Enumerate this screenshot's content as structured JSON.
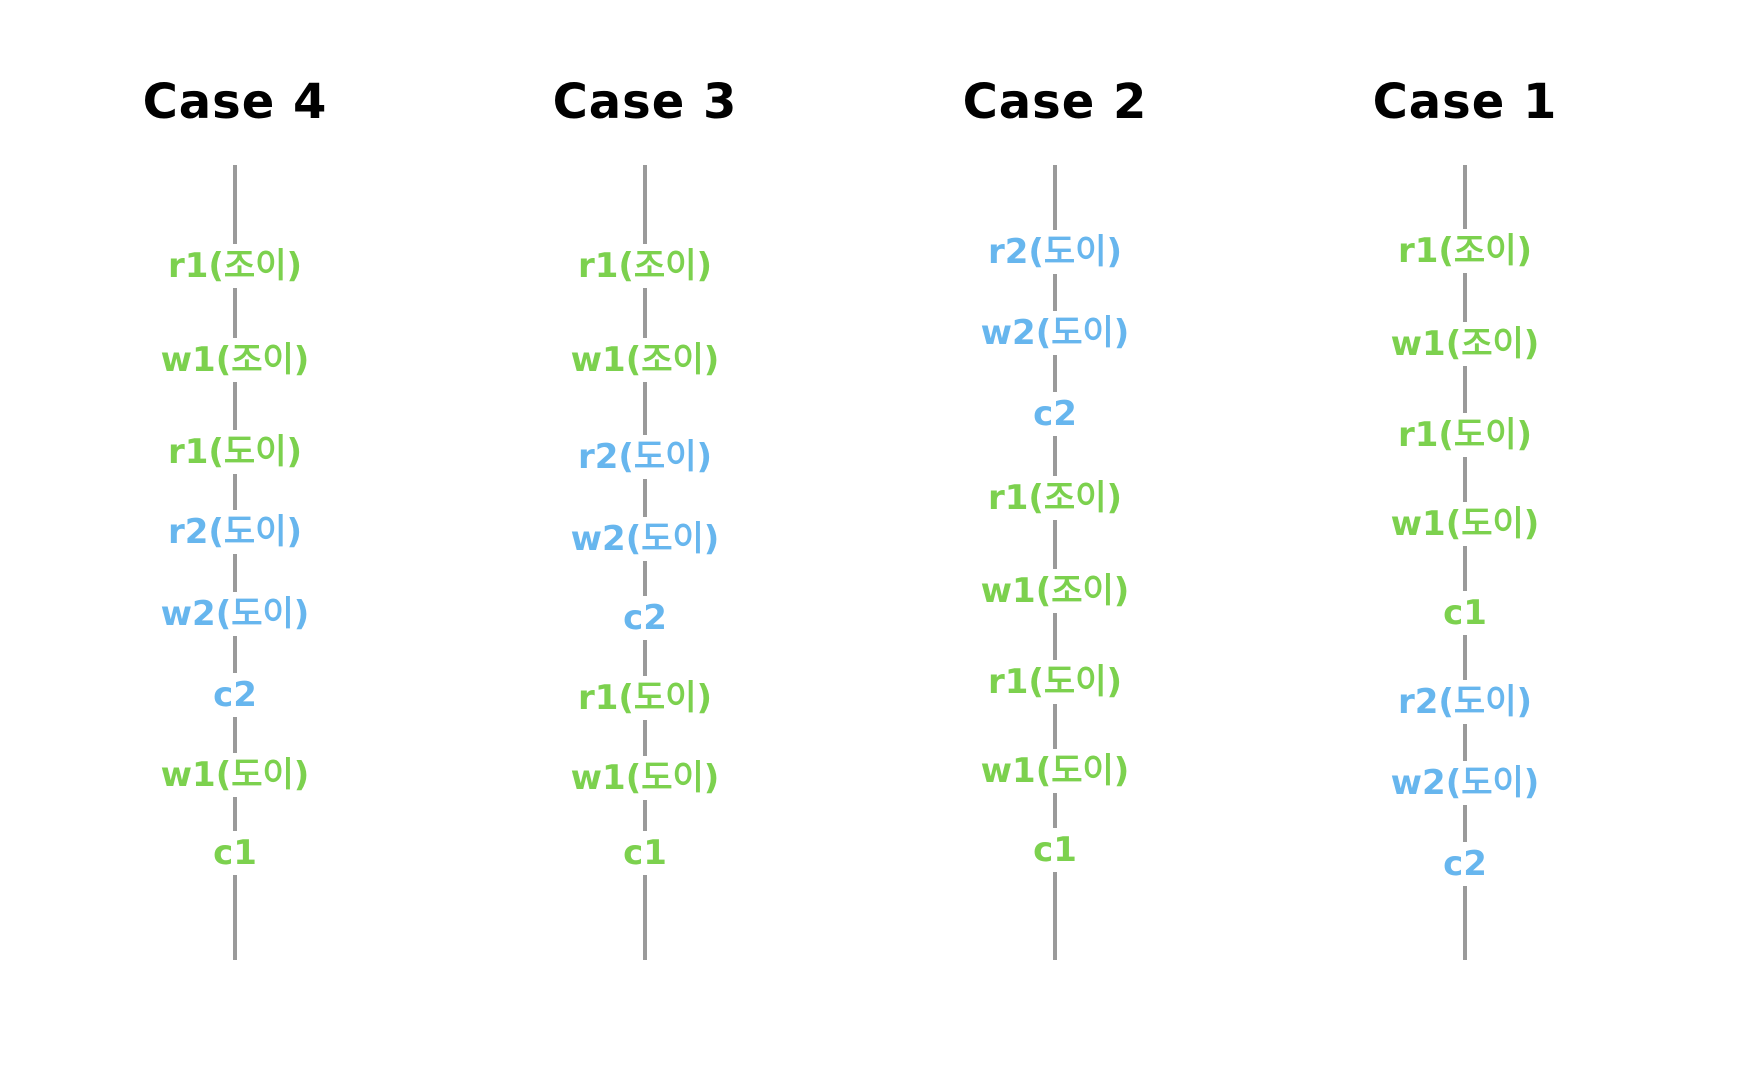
{
  "colors": {
    "transaction_1": "#7cd14e",
    "transaction_2": "#67b6ee",
    "timeline": "#9a9a9a",
    "title": "#000000"
  },
  "cases": [
    {
      "title": "Case 4",
      "ops": [
        {
          "label": "r1(조이)",
          "txn": 1
        },
        {
          "label": "w1(조이)",
          "txn": 1
        },
        {
          "label": "r1(도이)",
          "txn": 1
        },
        {
          "label": "r2(도이)",
          "txn": 2
        },
        {
          "label": "w2(도이)",
          "txn": 2
        },
        {
          "label": "c2",
          "txn": 2
        },
        {
          "label": "w1(도이)",
          "txn": 1
        },
        {
          "label": "c1",
          "txn": 1
        }
      ]
    },
    {
      "title": "Case 3",
      "ops": [
        {
          "label": "r1(조이)",
          "txn": 1
        },
        {
          "label": "w1(조이)",
          "txn": 1
        },
        {
          "label": "r2(도이)",
          "txn": 2
        },
        {
          "label": "w2(도이)",
          "txn": 2
        },
        {
          "label": "c2",
          "txn": 2
        },
        {
          "label": "r1(도이)",
          "txn": 1
        },
        {
          "label": "w1(도이)",
          "txn": 1
        },
        {
          "label": "c1",
          "txn": 1
        }
      ]
    },
    {
      "title": "Case 2",
      "ops": [
        {
          "label": "r2(도이)",
          "txn": 2
        },
        {
          "label": "w2(도이)",
          "txn": 2
        },
        {
          "label": "c2",
          "txn": 2
        },
        {
          "label": "r1(조이)",
          "txn": 1
        },
        {
          "label": "w1(조이)",
          "txn": 1
        },
        {
          "label": "r1(도이)",
          "txn": 1
        },
        {
          "label": "w1(도이)",
          "txn": 1
        },
        {
          "label": "c1",
          "txn": 1
        }
      ]
    },
    {
      "title": "Case 1",
      "ops": [
        {
          "label": "r1(조이)",
          "txn": 1
        },
        {
          "label": "w1(조이)",
          "txn": 1
        },
        {
          "label": "r1(도이)",
          "txn": 1
        },
        {
          "label": "w1(도이)",
          "txn": 1
        },
        {
          "label": "c1",
          "txn": 1
        },
        {
          "label": "r2(도이)",
          "txn": 2
        },
        {
          "label": "w2(도이)",
          "txn": 2
        },
        {
          "label": "c2",
          "txn": 2
        }
      ]
    }
  ]
}
